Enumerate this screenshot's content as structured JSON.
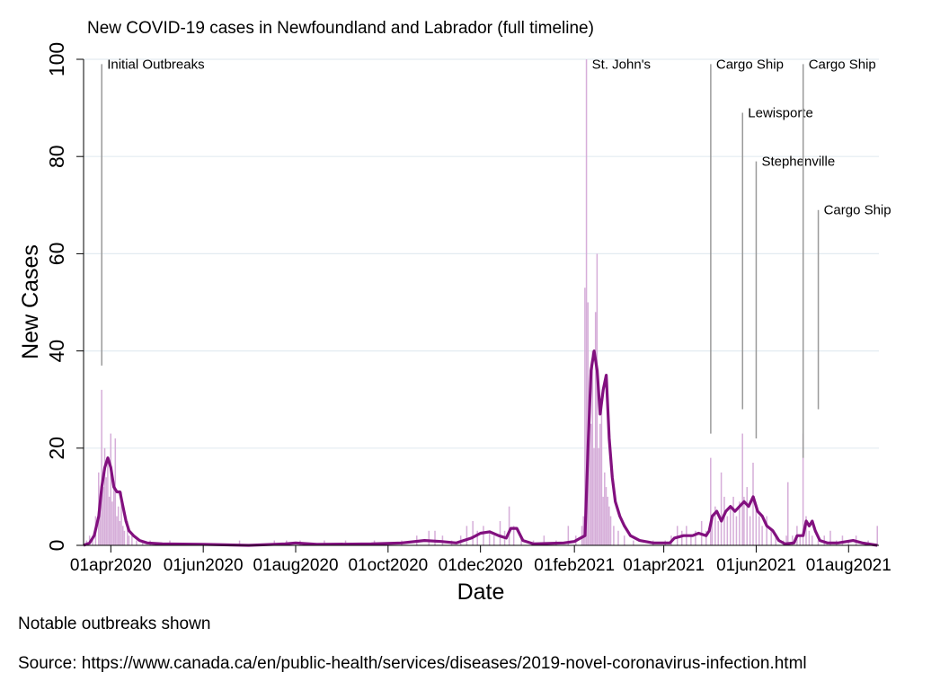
{
  "chart_data": {
    "type": "bar",
    "title": "New COVID-19 cases in Newfoundland and Labrador (full timeline)",
    "xlabel": "Date",
    "ylabel": "New Cases",
    "ylim": [
      0,
      100
    ],
    "yticks": [
      "0",
      "20",
      "40",
      "60",
      "80",
      "100"
    ],
    "xlim": [
      "2020-03-14",
      "2021-08-21"
    ],
    "xticks": [
      {
        "date": "2020-04-01",
        "label": "01apr2020"
      },
      {
        "date": "2020-06-01",
        "label": "01jun2020"
      },
      {
        "date": "2020-08-01",
        "label": "01aug2020"
      },
      {
        "date": "2020-10-01",
        "label": "01oct2020"
      },
      {
        "date": "2020-12-01",
        "label": "01dec2020"
      },
      {
        "date": "2021-02-01",
        "label": "01feb2021"
      },
      {
        "date": "2021-04-01",
        "label": "01apr2021"
      },
      {
        "date": "2021-06-01",
        "label": "01jun2021"
      },
      {
        "date": "2021-08-01",
        "label": "01aug2021"
      }
    ],
    "grid": true,
    "colors": {
      "bars": "#d6aed9",
      "line": "#82107f",
      "annotation_line": "#9a9a9a",
      "grid": "#e3ebf1"
    },
    "bar_series": [
      [
        "2020-03-16",
        1
      ],
      [
        "2020-03-18",
        2
      ],
      [
        "2020-03-20",
        2
      ],
      [
        "2020-03-22",
        6
      ],
      [
        "2020-03-24",
        15
      ],
      [
        "2020-03-25",
        9
      ],
      [
        "2020-03-26",
        32
      ],
      [
        "2020-03-27",
        12
      ],
      [
        "2020-03-28",
        20
      ],
      [
        "2020-03-29",
        14
      ],
      [
        "2020-03-30",
        18
      ],
      [
        "2020-03-31",
        10
      ],
      [
        "2020-04-01",
        23
      ],
      [
        "2020-04-02",
        9
      ],
      [
        "2020-04-03",
        12
      ],
      [
        "2020-04-04",
        22
      ],
      [
        "2020-04-05",
        6
      ],
      [
        "2020-04-06",
        8
      ],
      [
        "2020-04-07",
        5
      ],
      [
        "2020-04-08",
        11
      ],
      [
        "2020-04-09",
        4
      ],
      [
        "2020-04-10",
        3
      ],
      [
        "2020-04-12",
        5
      ],
      [
        "2020-04-13",
        2
      ],
      [
        "2020-04-15",
        2
      ],
      [
        "2020-04-18",
        1
      ],
      [
        "2020-04-22",
        1
      ],
      [
        "2020-04-27",
        1
      ],
      [
        "2020-05-10",
        1
      ],
      [
        "2020-06-25",
        1
      ],
      [
        "2020-07-18",
        1
      ],
      [
        "2020-07-26",
        1
      ],
      [
        "2020-08-04",
        1
      ],
      [
        "2020-08-20",
        1
      ],
      [
        "2020-09-03",
        1
      ],
      [
        "2020-09-22",
        1
      ],
      [
        "2020-10-10",
        1
      ],
      [
        "2020-10-20",
        2
      ],
      [
        "2020-10-28",
        3
      ],
      [
        "2020-11-01",
        3
      ],
      [
        "2020-11-06",
        2
      ],
      [
        "2020-11-12",
        1
      ],
      [
        "2020-11-18",
        2
      ],
      [
        "2020-11-22",
        4
      ],
      [
        "2020-11-26",
        5
      ],
      [
        "2020-11-29",
        3
      ],
      [
        "2020-12-03",
        4
      ],
      [
        "2020-12-07",
        3
      ],
      [
        "2020-12-10",
        2
      ],
      [
        "2020-12-14",
        5
      ],
      [
        "2020-12-17",
        3
      ],
      [
        "2020-12-20",
        8
      ],
      [
        "2020-12-23",
        4
      ],
      [
        "2020-12-28",
        2
      ],
      [
        "2021-01-05",
        1
      ],
      [
        "2021-01-12",
        2
      ],
      [
        "2021-01-20",
        1
      ],
      [
        "2021-01-28",
        4
      ],
      [
        "2021-02-02",
        2
      ],
      [
        "2021-02-06",
        4
      ],
      [
        "2021-02-07",
        6
      ],
      [
        "2021-02-08",
        53
      ],
      [
        "2021-02-09",
        100
      ],
      [
        "2021-02-10",
        50
      ],
      [
        "2021-02-11",
        30
      ],
      [
        "2021-02-12",
        25
      ],
      [
        "2021-02-13",
        40
      ],
      [
        "2021-02-14",
        20
      ],
      [
        "2021-02-15",
        48
      ],
      [
        "2021-02-16",
        60
      ],
      [
        "2021-02-17",
        20
      ],
      [
        "2021-02-18",
        25
      ],
      [
        "2021-02-19",
        30
      ],
      [
        "2021-02-20",
        10
      ],
      [
        "2021-02-21",
        15
      ],
      [
        "2021-02-22",
        12
      ],
      [
        "2021-02-23",
        10
      ],
      [
        "2021-02-24",
        8
      ],
      [
        "2021-02-25",
        6
      ],
      [
        "2021-02-27",
        4
      ],
      [
        "2021-03-02",
        3
      ],
      [
        "2021-03-06",
        2
      ],
      [
        "2021-03-12",
        1
      ],
      [
        "2021-03-25",
        1
      ],
      [
        "2021-04-02",
        1
      ],
      [
        "2021-04-06",
        2
      ],
      [
        "2021-04-10",
        4
      ],
      [
        "2021-04-13",
        3
      ],
      [
        "2021-04-16",
        4
      ],
      [
        "2021-04-19",
        2
      ],
      [
        "2021-04-22",
        3
      ],
      [
        "2021-04-26",
        5
      ],
      [
        "2021-04-29",
        3
      ],
      [
        "2021-05-02",
        18
      ],
      [
        "2021-05-03",
        6
      ],
      [
        "2021-05-05",
        8
      ],
      [
        "2021-05-07",
        5
      ],
      [
        "2021-05-09",
        15
      ],
      [
        "2021-05-11",
        10
      ],
      [
        "2021-05-13",
        6
      ],
      [
        "2021-05-15",
        8
      ],
      [
        "2021-05-17",
        10
      ],
      [
        "2021-05-19",
        6
      ],
      [
        "2021-05-21",
        9
      ],
      [
        "2021-05-23",
        23
      ],
      [
        "2021-05-24",
        10
      ],
      [
        "2021-05-26",
        12
      ],
      [
        "2021-05-28",
        6
      ],
      [
        "2021-05-30",
        17
      ],
      [
        "2021-06-01",
        8
      ],
      [
        "2021-06-03",
        6
      ],
      [
        "2021-06-05",
        4
      ],
      [
        "2021-06-08",
        6
      ],
      [
        "2021-06-11",
        3
      ],
      [
        "2021-06-14",
        2
      ],
      [
        "2021-06-19",
        1
      ],
      [
        "2021-06-21",
        2
      ],
      [
        "2021-06-22",
        13
      ],
      [
        "2021-06-25",
        2
      ],
      [
        "2021-06-28",
        4
      ],
      [
        "2021-06-30",
        2
      ],
      [
        "2021-07-02",
        23
      ],
      [
        "2021-07-04",
        6
      ],
      [
        "2021-07-06",
        3
      ],
      [
        "2021-07-08",
        2
      ],
      [
        "2021-07-12",
        1
      ],
      [
        "2021-07-16",
        2
      ],
      [
        "2021-07-20",
        3
      ],
      [
        "2021-07-24",
        1
      ],
      [
        "2021-07-28",
        2
      ],
      [
        "2021-08-01",
        1
      ],
      [
        "2021-08-06",
        2
      ],
      [
        "2021-08-14",
        1
      ],
      [
        "2021-08-20",
        4
      ]
    ],
    "line_series": [
      [
        "2020-03-14",
        0
      ],
      [
        "2020-03-18",
        0.5
      ],
      [
        "2020-03-21",
        2
      ],
      [
        "2020-03-24",
        6
      ],
      [
        "2020-03-26",
        12
      ],
      [
        "2020-03-28",
        16
      ],
      [
        "2020-03-30",
        18
      ],
      [
        "2020-04-01",
        16
      ],
      [
        "2020-04-03",
        12
      ],
      [
        "2020-04-05",
        11
      ],
      [
        "2020-04-07",
        11
      ],
      [
        "2020-04-09",
        8
      ],
      [
        "2020-04-11",
        5
      ],
      [
        "2020-04-13",
        3
      ],
      [
        "2020-04-16",
        2
      ],
      [
        "2020-04-20",
        1
      ],
      [
        "2020-04-25",
        0.5
      ],
      [
        "2020-05-05",
        0.3
      ],
      [
        "2020-06-01",
        0.2
      ],
      [
        "2020-07-01",
        0
      ],
      [
        "2020-07-25",
        0.3
      ],
      [
        "2020-08-01",
        0.5
      ],
      [
        "2020-08-15",
        0.2
      ],
      [
        "2020-09-20",
        0.3
      ],
      [
        "2020-10-10",
        0.5
      ],
      [
        "2020-10-25",
        1
      ],
      [
        "2020-11-05",
        0.8
      ],
      [
        "2020-11-15",
        0.5
      ],
      [
        "2020-11-25",
        1.5
      ],
      [
        "2020-12-01",
        2.5
      ],
      [
        "2020-12-07",
        2.8
      ],
      [
        "2020-12-13",
        2
      ],
      [
        "2020-12-18",
        1.5
      ],
      [
        "2020-12-21",
        3.5
      ],
      [
        "2020-12-25",
        3.5
      ],
      [
        "2020-12-29",
        1
      ],
      [
        "2021-01-05",
        0.3
      ],
      [
        "2021-01-25",
        0.5
      ],
      [
        "2021-02-01",
        0.8
      ],
      [
        "2021-02-05",
        1.5
      ],
      [
        "2021-02-08",
        2
      ],
      [
        "2021-02-10",
        20
      ],
      [
        "2021-02-12",
        36
      ],
      [
        "2021-02-14",
        40
      ],
      [
        "2021-02-16",
        36
      ],
      [
        "2021-02-18",
        27
      ],
      [
        "2021-02-20",
        32
      ],
      [
        "2021-02-22",
        35
      ],
      [
        "2021-02-24",
        22
      ],
      [
        "2021-02-26",
        14
      ],
      [
        "2021-02-28",
        9
      ],
      [
        "2021-03-03",
        6
      ],
      [
        "2021-03-06",
        4
      ],
      [
        "2021-03-10",
        2
      ],
      [
        "2021-03-16",
        1
      ],
      [
        "2021-03-25",
        0.5
      ],
      [
        "2021-04-05",
        0.5
      ],
      [
        "2021-04-08",
        1.5
      ],
      [
        "2021-04-14",
        2
      ],
      [
        "2021-04-20",
        2
      ],
      [
        "2021-04-24",
        2.5
      ],
      [
        "2021-04-29",
        2
      ],
      [
        "2021-05-01",
        3
      ],
      [
        "2021-05-03",
        6
      ],
      [
        "2021-05-06",
        7
      ],
      [
        "2021-05-09",
        5
      ],
      [
        "2021-05-12",
        7
      ],
      [
        "2021-05-15",
        8
      ],
      [
        "2021-05-18",
        7
      ],
      [
        "2021-05-21",
        8
      ],
      [
        "2021-05-24",
        9
      ],
      [
        "2021-05-27",
        8
      ],
      [
        "2021-05-30",
        10
      ],
      [
        "2021-06-02",
        7
      ],
      [
        "2021-06-05",
        6
      ],
      [
        "2021-06-08",
        4
      ],
      [
        "2021-06-12",
        3
      ],
      [
        "2021-06-16",
        1
      ],
      [
        "2021-06-20",
        0.3
      ],
      [
        "2021-06-26",
        0.5
      ],
      [
        "2021-06-28",
        2
      ],
      [
        "2021-07-02",
        2
      ],
      [
        "2021-07-04",
        5
      ],
      [
        "2021-07-06",
        4
      ],
      [
        "2021-07-08",
        5
      ],
      [
        "2021-07-10",
        3
      ],
      [
        "2021-07-13",
        1
      ],
      [
        "2021-07-18",
        0.5
      ],
      [
        "2021-07-25",
        0.5
      ],
      [
        "2021-08-04",
        1
      ],
      [
        "2021-08-10",
        0.5
      ],
      [
        "2021-08-20",
        0
      ]
    ],
    "annotations": [
      {
        "label": "Initial Outbreaks",
        "date": "2020-03-26",
        "y_top": 99,
        "y_bottom": 37
      },
      {
        "label": "St. John's",
        "date": "2021-02-09",
        "y_top": 99,
        "y_bottom": 99
      },
      {
        "label": "Cargo Ship",
        "date": "2021-05-02",
        "y_top": 99,
        "y_bottom": 23
      },
      {
        "label": "Lewisporte",
        "date": "2021-05-23",
        "y_top": 89,
        "y_bottom": 28
      },
      {
        "label": "Stephenville",
        "date": "2021-06-01",
        "y_top": 79,
        "y_bottom": 22
      },
      {
        "label": "Cargo Ship",
        "date": "2021-07-02",
        "y_top": 99,
        "y_bottom": 18
      },
      {
        "label": "Cargo Ship",
        "date": "2021-07-12",
        "y_top": 69,
        "y_bottom": 28
      }
    ],
    "notes": [
      "Notable outbreaks shown",
      "Source: https://www.canada.ca/en/public-health/services/diseases/2019-novel-coronavirus-infection.html"
    ]
  }
}
